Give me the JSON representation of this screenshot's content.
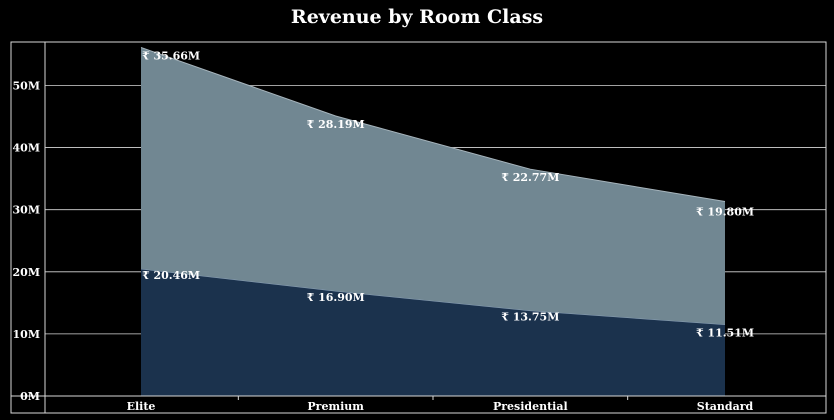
{
  "chart_data": {
    "type": "area",
    "stacked": true,
    "title": "Revenue by Room Class",
    "xlabel": "",
    "ylabel": "",
    "categories": [
      "Elite",
      "Premium",
      "Presidential",
      "Standard"
    ],
    "y_ticks": [
      "0M",
      "10M",
      "20M",
      "30M",
      "40M",
      "50M"
    ],
    "ylim": [
      0,
      57
    ],
    "grid": true,
    "legend": "none",
    "series": [
      {
        "values": [
          20.46,
          16.9,
          13.75,
          11.51
        ],
        "labels": [
          "₹ 20.46M",
          "₹ 16.90M",
          "₹ 13.75M",
          "₹ 11.51M"
        ],
        "color": "#1b324d"
      },
      {
        "values": [
          35.66,
          28.19,
          22.77,
          19.8
        ],
        "labels": [
          "₹ 35.66M",
          "₹ 28.19M",
          "₹ 22.77M",
          "₹ 19.80M"
        ],
        "color": "#718792"
      }
    ]
  }
}
